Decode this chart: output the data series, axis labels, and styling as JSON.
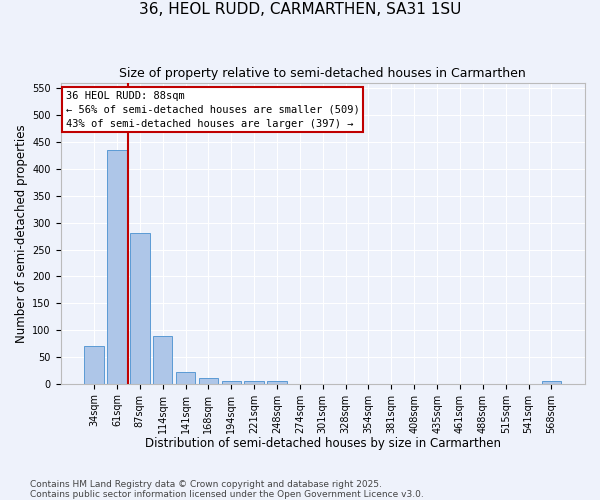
{
  "title": "36, HEOL RUDD, CARMARTHEN, SA31 1SU",
  "subtitle": "Size of property relative to semi-detached houses in Carmarthen",
  "xlabel": "Distribution of semi-detached houses by size in Carmarthen",
  "ylabel": "Number of semi-detached properties",
  "categories": [
    "34sqm",
    "61sqm",
    "87sqm",
    "114sqm",
    "141sqm",
    "168sqm",
    "194sqm",
    "221sqm",
    "248sqm",
    "274sqm",
    "301sqm",
    "328sqm",
    "354sqm",
    "381sqm",
    "408sqm",
    "435sqm",
    "461sqm",
    "488sqm",
    "515sqm",
    "541sqm",
    "568sqm"
  ],
  "values": [
    70,
    435,
    280,
    88,
    21,
    10,
    5,
    5,
    6,
    0,
    0,
    0,
    0,
    0,
    0,
    0,
    0,
    0,
    0,
    0,
    5
  ],
  "bar_color": "#aec6e8",
  "bar_edge_color": "#5b9bd5",
  "vline_color": "#c00000",
  "annotation_text": "36 HEOL RUDD: 88sqm\n← 56% of semi-detached houses are smaller (509)\n43% of semi-detached houses are larger (397) →",
  "annotation_box_facecolor": "#ffffff",
  "annotation_box_edgecolor": "#c00000",
  "ylim": [
    0,
    560
  ],
  "yticks": [
    0,
    50,
    100,
    150,
    200,
    250,
    300,
    350,
    400,
    450,
    500,
    550
  ],
  "footnote": "Contains HM Land Registry data © Crown copyright and database right 2025.\nContains public sector information licensed under the Open Government Licence v3.0.",
  "bg_color": "#eef2fb",
  "grid_color": "#ffffff",
  "title_fontsize": 11,
  "subtitle_fontsize": 9,
  "tick_fontsize": 7,
  "label_fontsize": 8.5,
  "footnote_fontsize": 6.5
}
